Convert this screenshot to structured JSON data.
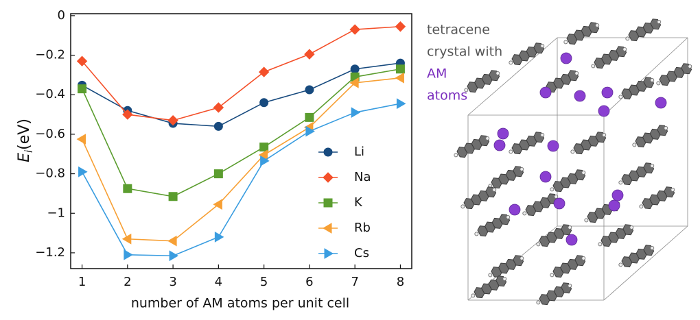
{
  "chart_data": {
    "type": "line",
    "ylabel": {
      "symbol": "E",
      "subscript": "i",
      "unit": "(eV)"
    },
    "xlabel": "number of AM atoms per unit cell",
    "x": [
      1,
      2,
      3,
      4,
      5,
      6,
      7,
      8
    ],
    "xlim": [
      0.75,
      8.25
    ],
    "xticks": [
      1,
      2,
      3,
      4,
      5,
      6,
      7,
      8
    ],
    "ylim": [
      -1.28,
      0.01
    ],
    "yticks": [
      0,
      {
        "value": -0.2,
        "label": "−0.2"
      },
      {
        "value": -0.4,
        "label": "−0.4"
      },
      {
        "value": -0.6,
        "label": "−0.6"
      },
      {
        "value": -0.8,
        "label": "−0.8"
      },
      {
        "value": -1,
        "label": "−1"
      },
      {
        "value": -1.2,
        "label": "−1.2"
      }
    ],
    "legend": "lower right",
    "series": [
      {
        "name": "Li",
        "color": "#174a7e",
        "marker": "circle",
        "values": [
          -0.352,
          -0.48,
          -0.545,
          -0.56,
          -0.44,
          -0.375,
          -0.27,
          -0.24
        ]
      },
      {
        "name": "Na",
        "color": "#f4502a",
        "marker": "diamond",
        "values": [
          -0.23,
          -0.5,
          -0.53,
          -0.465,
          -0.285,
          -0.195,
          -0.07,
          -0.055
        ]
      },
      {
        "name": "K",
        "color": "#5b9d2f",
        "marker": "square",
        "values": [
          -0.37,
          -0.875,
          -0.915,
          -0.8,
          -0.665,
          -0.515,
          -0.31,
          -0.27
        ]
      },
      {
        "name": "Rb",
        "color": "#f7a035",
        "marker": "triangle-left",
        "values": [
          -0.625,
          -1.13,
          -1.14,
          -0.955,
          -0.705,
          -0.565,
          -0.34,
          -0.315
        ]
      },
      {
        "name": "Cs",
        "color": "#3a9de0",
        "marker": "triangle-right",
        "values": [
          -0.79,
          -1.21,
          -1.215,
          -1.12,
          -0.735,
          -0.585,
          -0.49,
          -0.445
        ]
      }
    ]
  },
  "image_annotation": {
    "lines": [
      "tetracene",
      "crystal with",
      "AM",
      "atoms"
    ],
    "colors": [
      "#555555",
      "#555555",
      "#7b2fbe",
      "#7b2fbe"
    ]
  }
}
